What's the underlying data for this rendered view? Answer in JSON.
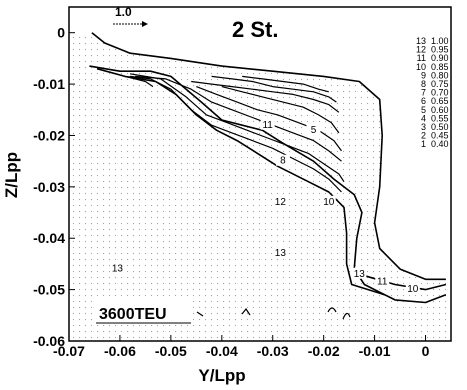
{
  "chart_data": {
    "type": "contour",
    "title": "2 St.",
    "xlabel": "Y/Lpp",
    "ylabel": "Z/Lpp",
    "xlim": [
      -0.07,
      0.005
    ],
    "ylim": [
      -0.06,
      0.005
    ],
    "x_ticks": [
      "-0.07",
      "-0.06",
      "-0.05",
      "-0.04",
      "-0.03",
      "-0.02",
      "-0.01",
      "0"
    ],
    "y_ticks": [
      "0",
      "-0.01",
      "-0.02",
      "-0.03",
      "-0.04",
      "-0.05",
      "-0.06"
    ],
    "reference_vector_label": "1.0",
    "ship_label": "3600TEU",
    "legend": {
      "placement": "top-right",
      "levels": [
        "13",
        "12",
        "11",
        "10",
        "9",
        "8",
        "7",
        "6",
        "5",
        "4",
        "3",
        "2",
        "1"
      ],
      "values": [
        "1.00",
        "0.95",
        "0.90",
        "0.85",
        "0.80",
        "0.75",
        "0.70",
        "0.65",
        "0.60",
        "0.55",
        "0.50",
        "0.45",
        "0.40"
      ]
    },
    "contours": [
      {
        "level": "13",
        "points": [
          [
            -0.0655,
            0.0
          ],
          [
            -0.063,
            -0.002
          ],
          [
            -0.058,
            -0.004
          ],
          [
            -0.05,
            -0.005
          ],
          [
            -0.04,
            -0.0065
          ],
          [
            -0.03,
            -0.0075
          ],
          [
            -0.02,
            -0.0085
          ],
          [
            -0.013,
            -0.0095
          ],
          [
            -0.009,
            -0.013
          ],
          [
            -0.0085,
            -0.02
          ],
          [
            -0.009,
            -0.03
          ],
          [
            -0.01,
            -0.037
          ],
          [
            -0.009,
            -0.042
          ],
          [
            -0.005,
            -0.046
          ],
          [
            0.0,
            -0.048
          ],
          [
            0.004,
            -0.048
          ]
        ]
      },
      {
        "level": "12",
        "points": [
          [
            -0.066,
            -0.0065
          ],
          [
            -0.06,
            -0.0075
          ],
          [
            -0.054,
            -0.0075
          ],
          [
            -0.05,
            -0.0085
          ],
          [
            -0.044,
            -0.0135
          ],
          [
            -0.04,
            -0.017
          ],
          [
            -0.036,
            -0.018
          ],
          [
            -0.032,
            -0.019
          ],
          [
            -0.028,
            -0.0215
          ],
          [
            -0.022,
            -0.025
          ],
          [
            -0.018,
            -0.0285
          ],
          [
            -0.014,
            -0.0315
          ],
          [
            -0.0125,
            -0.035
          ],
          [
            -0.0135,
            -0.04
          ],
          [
            -0.014,
            -0.046
          ],
          [
            -0.012,
            -0.049
          ],
          [
            -0.006,
            -0.052
          ],
          [
            0.0,
            -0.0525
          ],
          [
            0.004,
            -0.051
          ]
        ]
      },
      {
        "level": "11",
        "points": [
          [
            -0.0645,
            -0.007
          ],
          [
            -0.059,
            -0.0085
          ],
          [
            -0.053,
            -0.0095
          ],
          [
            -0.049,
            -0.012
          ],
          [
            -0.045,
            -0.016
          ],
          [
            -0.041,
            -0.019
          ],
          [
            -0.037,
            -0.021
          ],
          [
            -0.033,
            -0.0235
          ],
          [
            -0.029,
            -0.026
          ],
          [
            -0.023,
            -0.029
          ],
          [
            -0.019,
            -0.031
          ],
          [
            -0.016,
            -0.034
          ],
          [
            -0.0155,
            -0.039
          ],
          [
            -0.0155,
            -0.045
          ],
          [
            -0.0145,
            -0.049
          ],
          [
            -0.008,
            -0.051
          ]
        ]
      },
      {
        "level": "10",
        "points": [
          [
            -0.013,
            -0.047
          ],
          [
            -0.006,
            -0.049
          ],
          [
            0.0,
            -0.05
          ],
          [
            0.004,
            -0.049
          ]
        ]
      },
      {
        "level": "9",
        "points": [
          [
            -0.058,
            -0.0085
          ],
          [
            -0.054,
            -0.009
          ],
          [
            -0.05,
            -0.011
          ],
          [
            -0.046,
            -0.015
          ],
          [
            -0.042,
            -0.018
          ],
          [
            -0.038,
            -0.0195
          ],
          [
            -0.034,
            -0.021
          ],
          [
            -0.03,
            -0.0225
          ],
          [
            -0.026,
            -0.0245
          ],
          [
            -0.022,
            -0.0265
          ],
          [
            -0.019,
            -0.0285
          ],
          [
            -0.0165,
            -0.031
          ]
        ]
      },
      {
        "level": "8",
        "points": [
          [
            -0.058,
            -0.008
          ],
          [
            -0.052,
            -0.009
          ],
          [
            -0.047,
            -0.0125
          ],
          [
            -0.043,
            -0.016
          ],
          [
            -0.039,
            -0.0175
          ],
          [
            -0.035,
            -0.019
          ],
          [
            -0.031,
            -0.0205
          ],
          [
            -0.027,
            -0.022
          ],
          [
            -0.023,
            -0.0235
          ],
          [
            -0.02,
            -0.0255
          ],
          [
            -0.017,
            -0.0275
          ],
          [
            -0.016,
            -0.029
          ]
        ]
      },
      {
        "level": "7",
        "points": [
          [
            -0.057,
            -0.0085
          ],
          [
            -0.051,
            -0.009
          ],
          [
            -0.046,
            -0.011
          ],
          [
            -0.042,
            -0.0135
          ],
          [
            -0.038,
            -0.015
          ],
          [
            -0.034,
            -0.0165
          ],
          [
            -0.03,
            -0.018
          ],
          [
            -0.026,
            -0.0195
          ],
          [
            -0.022,
            -0.021
          ],
          [
            -0.019,
            -0.023
          ],
          [
            -0.0165,
            -0.025
          ]
        ]
      },
      {
        "level": "6",
        "points": [
          [
            -0.045,
            -0.0105
          ],
          [
            -0.041,
            -0.012
          ],
          [
            -0.037,
            -0.0135
          ],
          [
            -0.033,
            -0.015
          ],
          [
            -0.029,
            -0.016
          ],
          [
            -0.025,
            -0.0175
          ],
          [
            -0.021,
            -0.019
          ],
          [
            -0.018,
            -0.021
          ],
          [
            -0.0165,
            -0.023
          ]
        ]
      },
      {
        "level": "5",
        "points": [
          [
            -0.04,
            -0.0105
          ],
          [
            -0.036,
            -0.0115
          ],
          [
            -0.032,
            -0.0125
          ],
          [
            -0.028,
            -0.0135
          ],
          [
            -0.024,
            -0.0145
          ],
          [
            -0.021,
            -0.016
          ],
          [
            -0.0185,
            -0.0175
          ],
          [
            -0.017,
            -0.0195
          ]
        ]
      },
      {
        "level": "4",
        "points": [
          [
            -0.046,
            -0.0095
          ],
          [
            -0.042,
            -0.01
          ],
          [
            -0.038,
            -0.0105
          ],
          [
            -0.034,
            -0.011
          ],
          [
            -0.03,
            -0.0115
          ],
          [
            -0.026,
            -0.012
          ],
          [
            -0.022,
            -0.013
          ],
          [
            -0.019,
            -0.014
          ],
          [
            -0.017,
            -0.0155
          ]
        ]
      },
      {
        "level": "3",
        "points": [
          [
            -0.042,
            -0.0085
          ],
          [
            -0.038,
            -0.009
          ],
          [
            -0.034,
            -0.0095
          ],
          [
            -0.03,
            -0.0105
          ],
          [
            -0.026,
            -0.011
          ],
          [
            -0.022,
            -0.0115
          ],
          [
            -0.019,
            -0.0125
          ],
          [
            -0.0175,
            -0.0135
          ]
        ]
      },
      {
        "level": "2",
        "points": [
          [
            -0.036,
            -0.0085
          ],
          [
            -0.032,
            -0.009
          ],
          [
            -0.028,
            -0.0095
          ],
          [
            -0.024,
            -0.01
          ],
          [
            -0.021,
            -0.011
          ],
          [
            -0.019,
            -0.0115
          ]
        ]
      },
      {
        "level": "1",
        "points": [
          [
            -0.059,
            -0.0085
          ],
          [
            -0.057,
            -0.009
          ],
          [
            -0.055,
            -0.0095
          ],
          [
            -0.0535,
            -0.0105
          ]
        ]
      }
    ],
    "contour_labels": [
      {
        "text": "12",
        "x": -0.0285,
        "y": -0.0335
      },
      {
        "text": "11",
        "x": -0.031,
        "y": -0.0185
      },
      {
        "text": "8",
        "x": -0.028,
        "y": -0.0255
      },
      {
        "text": "5",
        "x": -0.022,
        "y": -0.0195
      },
      {
        "text": "10",
        "x": -0.019,
        "y": -0.0335
      },
      {
        "text": "13",
        "x": -0.0285,
        "y": -0.0435
      },
      {
        "text": "13",
        "x": -0.0605,
        "y": -0.0465
      },
      {
        "text": "13",
        "x": -0.013,
        "y": -0.0475
      },
      {
        "text": "11",
        "x": -0.0085,
        "y": -0.049
      },
      {
        "text": "10",
        "x": -0.0025,
        "y": -0.0505
      }
    ]
  }
}
